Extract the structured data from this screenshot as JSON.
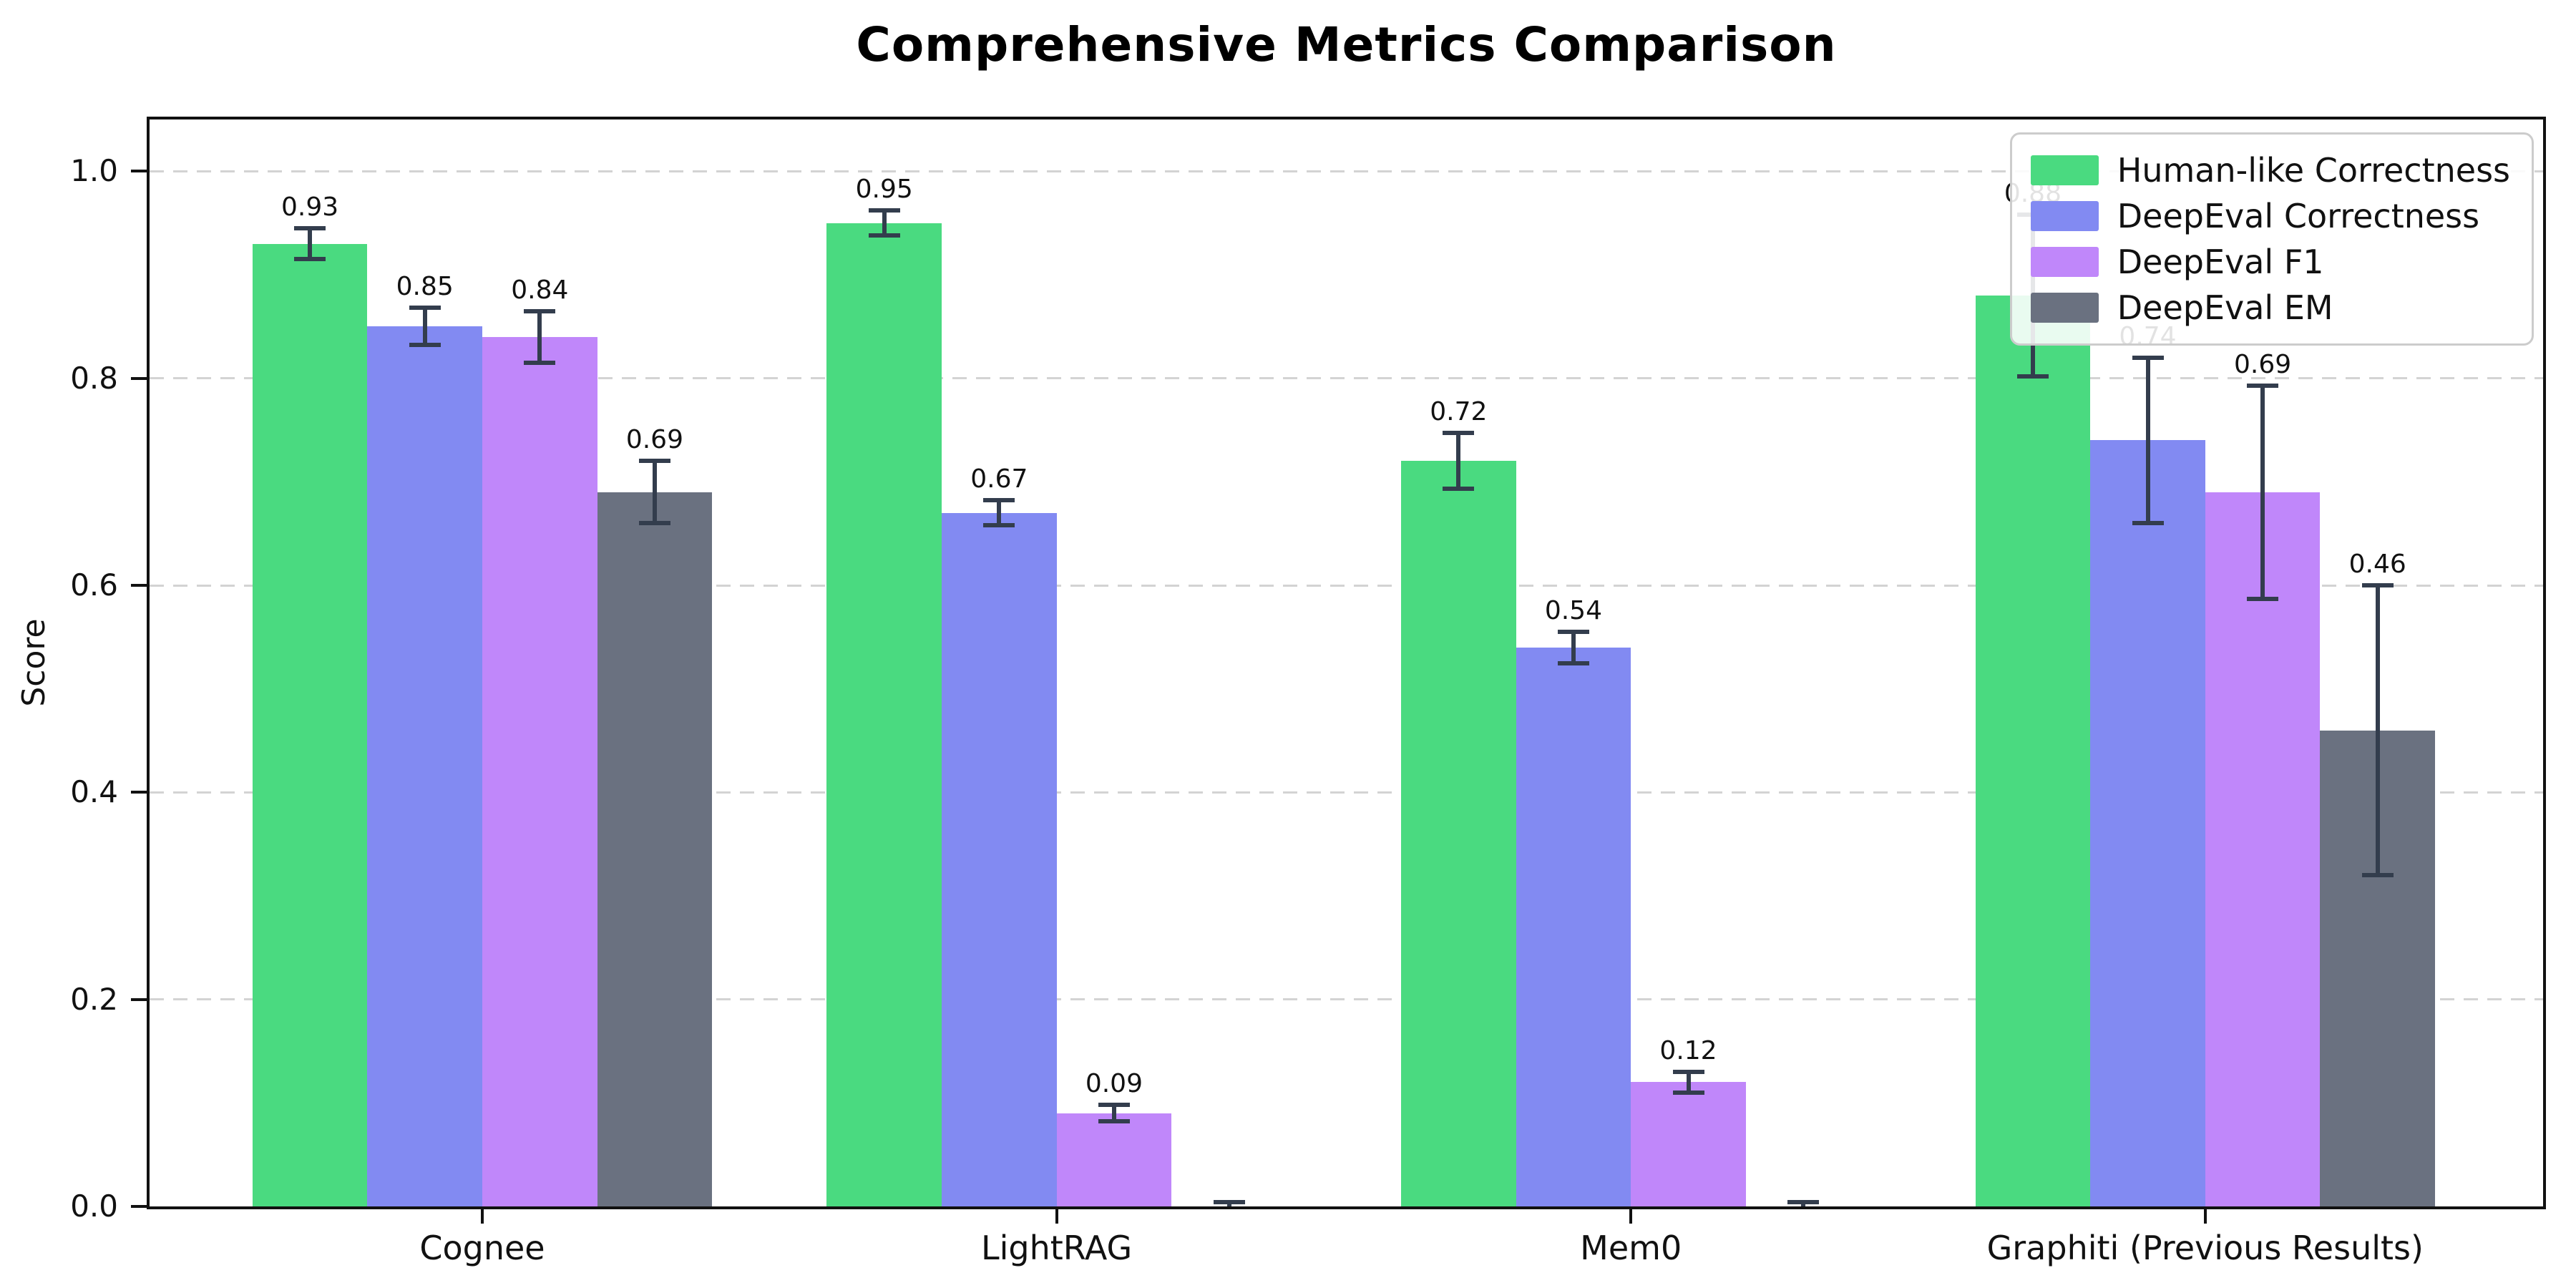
{
  "chart_data": {
    "type": "bar",
    "title": "Comprehensive Metrics Comparison",
    "ylabel": "Score",
    "categories": [
      "Cognee",
      "LightRAG",
      "Mem0",
      "Graphiti (Previous Results)"
    ],
    "series": [
      {
        "name": "Human-like Correctness",
        "color": "#4ada80",
        "values": [
          0.93,
          0.95,
          0.72,
          0.88
        ],
        "errors": [
          0.015,
          0.012,
          0.027,
          0.078
        ],
        "labels": [
          "0.93",
          "0.95",
          "0.72",
          "0.88"
        ]
      },
      {
        "name": "DeepEval Correctness",
        "color": "#828af2",
        "values": [
          0.85,
          0.67,
          0.54,
          0.74
        ],
        "errors": [
          0.018,
          0.012,
          0.015,
          0.08
        ],
        "labels": [
          "0.85",
          "0.67",
          "0.54",
          "0.74"
        ]
      },
      {
        "name": "DeepEval F1",
        "color": "#c087fa",
        "values": [
          0.84,
          0.09,
          0.12,
          0.69
        ],
        "errors": [
          0.025,
          0.008,
          0.01,
          0.103
        ],
        "labels": [
          "0.84",
          "0.09",
          "0.12",
          "0.69"
        ]
      },
      {
        "name": "DeepEval EM",
        "color": "#6a7180",
        "values": [
          0.69,
          0.0,
          0.0,
          0.46
        ],
        "errors": [
          0.03,
          0.004,
          0.004,
          0.14
        ],
        "labels": [
          "0.69",
          "",
          "",
          "0.46"
        ]
      }
    ],
    "yticks": [
      0.0,
      0.2,
      0.4,
      0.6,
      0.8,
      1.0
    ],
    "ytick_labels": [
      "0.0",
      "0.2",
      "0.4",
      "0.6",
      "0.8",
      "1.0"
    ],
    "ylim": [
      0,
      1.05
    ],
    "grid": "horizontal-dashed",
    "legend_position": "upper right",
    "error_bar_color": "#333d4d"
  }
}
